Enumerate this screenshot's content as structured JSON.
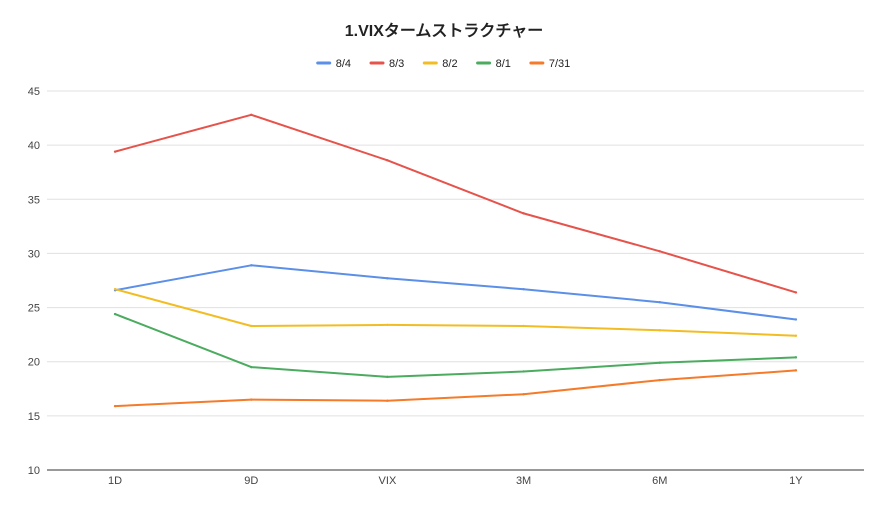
{
  "chart_data": {
    "type": "line",
    "title": "1.VIXタームストラクチャー",
    "xlabel": "",
    "ylabel": "",
    "categories": [
      "1D",
      "9D",
      "VIX",
      "3M",
      "6M",
      "1Y"
    ],
    "ylim": [
      10,
      45
    ],
    "yticks": [
      10,
      15,
      20,
      25,
      30,
      35,
      40,
      45
    ],
    "grid": true,
    "legend_position": "top",
    "series": [
      {
        "name": "8/4",
        "color": "#5b8fe8",
        "values": [
          26.6,
          28.9,
          27.7,
          26.7,
          25.5,
          23.9
        ]
      },
      {
        "name": "8/3",
        "color": "#e5534b",
        "values": [
          39.4,
          42.8,
          38.6,
          33.7,
          30.2,
          26.4
        ]
      },
      {
        "name": "8/2",
        "color": "#f2bd22",
        "values": [
          26.7,
          23.3,
          23.4,
          23.3,
          22.9,
          22.4
        ]
      },
      {
        "name": "8/1",
        "color": "#4bab5f",
        "values": [
          24.4,
          19.5,
          18.6,
          19.1,
          19.9,
          20.4
        ]
      },
      {
        "name": "7/31",
        "color": "#f57a29",
        "values": [
          15.9,
          16.5,
          16.4,
          17.0,
          18.3,
          19.2
        ]
      }
    ]
  }
}
